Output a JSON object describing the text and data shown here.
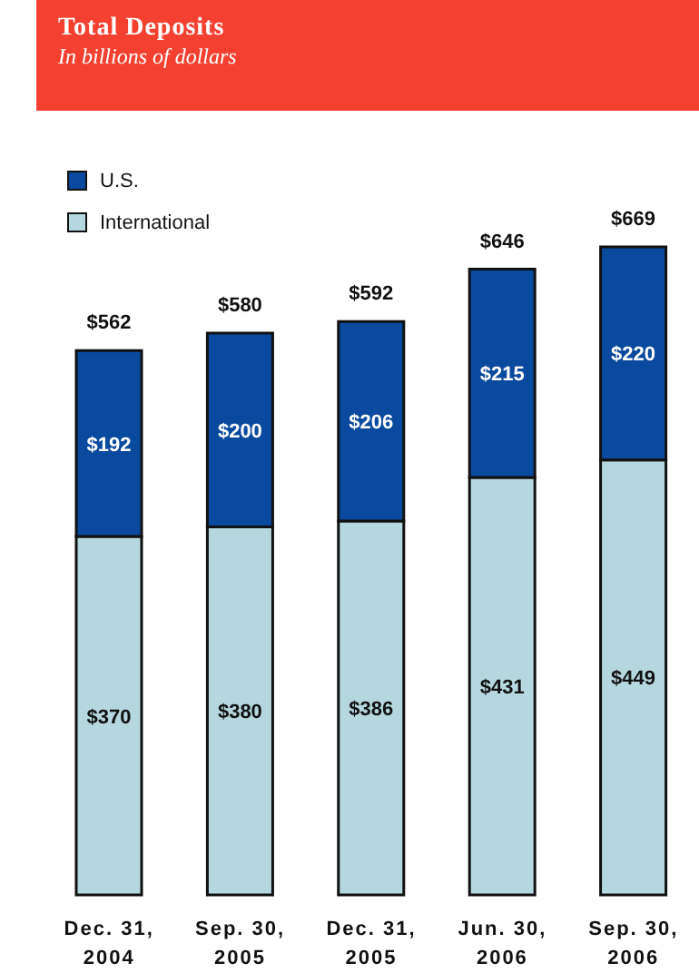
{
  "chart_data": {
    "type": "bar",
    "title": "Total Deposits",
    "subtitle": "In billions of dollars",
    "categories": [
      "Dec. 31, 2004",
      "Sep. 30, 2005",
      "Dec. 31, 2005",
      "Jun. 30, 2006",
      "Sep. 30, 2006"
    ],
    "stacked": true,
    "legend": "top left",
    "series": [
      {
        "name": "International",
        "color": "#b5d8de",
        "values": [
          370,
          380,
          386,
          431,
          449
        ],
        "value_labels": [
          "$370",
          "$380",
          "$386",
          "$431",
          "$449"
        ]
      },
      {
        "name": "U.S.",
        "color": "#0a4a9e",
        "values": [
          192,
          200,
          206,
          215,
          220
        ],
        "value_labels": [
          "$192",
          "$200",
          "$206",
          "$215",
          "$220"
        ]
      }
    ],
    "totals": [
      "$562",
      "$580",
      "$592",
      "$646",
      "$669"
    ]
  }
}
